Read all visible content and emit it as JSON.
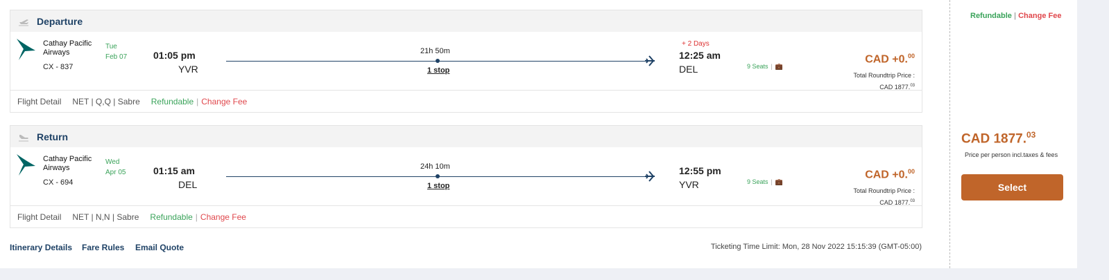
{
  "legs": [
    {
      "title": "Departure",
      "airline": "Cathay Pacific Airways",
      "flight_no": "CX - 837",
      "weekday": "Tue",
      "date": "Feb 07",
      "dep_time": "01:05 pm",
      "dep_code": "YVR",
      "duration": "21h 50m",
      "stops": "1 stop",
      "plus_days": "+ 2 Days",
      "arr_time": "12:25 am",
      "arr_code": "DEL",
      "seats": "9 Seats",
      "price_main": "CAD +0.",
      "price_dec": "00",
      "total_label": "Total Roundtrip Price :",
      "total_main": "CAD 1877.",
      "total_dec": "03",
      "flight_detail": "Flight Detail",
      "fare_info": "NET | Q,Q | Sabre",
      "refundable": "Refundable",
      "sep": "|",
      "change_fee": "Change Fee"
    },
    {
      "title": "Return",
      "airline": "Cathay Pacific Airways",
      "flight_no": "CX - 694",
      "weekday": "Wed",
      "date": "Apr 05",
      "dep_time": "01:15 am",
      "dep_code": "DEL",
      "duration": "24h 10m",
      "stops": "1 stop",
      "plus_days": "",
      "arr_time": "12:55 pm",
      "arr_code": "YVR",
      "seats": "9 Seats",
      "price_main": "CAD +0.",
      "price_dec": "00",
      "total_label": "Total Roundtrip Price :",
      "total_main": "CAD 1877.",
      "total_dec": "03",
      "flight_detail": "Flight Detail",
      "fare_info": "NET | N,N | Sabre",
      "refundable": "Refundable",
      "sep": "|",
      "change_fee": "Change Fee"
    }
  ],
  "links": {
    "itinerary": "Itinerary Details",
    "fare_rules": "Fare Rules",
    "email": "Email Quote"
  },
  "ticketing": "Ticketing Time Limit: Mon, 28 Nov 2022 15:15:39 (GMT-05:00)",
  "side": {
    "refundable": "Refundable",
    "sep": "|",
    "change_fee": "Change Fee",
    "price_main": "CAD 1877.",
    "price_dec": "03",
    "price_note": "Price per person incl.taxes & fees",
    "select": "Select"
  },
  "colors": {
    "accent": "#c0652a",
    "navy": "#1f4266",
    "green": "#3aa35a",
    "red": "#e0474c",
    "logo": "#006564"
  }
}
